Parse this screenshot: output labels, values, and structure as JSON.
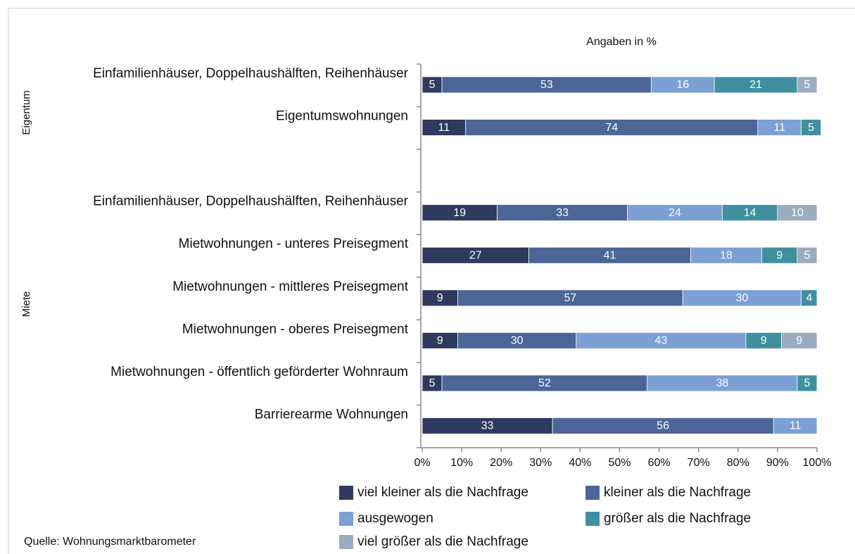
{
  "chart_data": {
    "type": "stacked_barh",
    "annotations": [
      "Angaben in %",
      "Quelle: Wohnungsmarktbarometer"
    ],
    "groups": [
      "Eigentum",
      "Miete"
    ],
    "categories": [
      "Einfamilienhäuser, Doppelhaushälften, Reihenhäuser",
      "Eigentumswohnungen",
      null,
      "Einfamilienhäuser, Doppelhaushälften, Reihenhäuser",
      "Mietwohnungen - unteres Preisegment",
      "Mietwohnungen - mittleres Preisegment",
      "Mietwohnungen - oberes Preisegment",
      "Mietwohnungen - öffentlich geförderter Wohnraum",
      "Barrierearme Wohnungen"
    ],
    "series": [
      {
        "name": "viel kleiner als die Nachfrage",
        "color": "#2e3a5e",
        "values": [
          5,
          11,
          null,
          19,
          27,
          9,
          9,
          5,
          33
        ]
      },
      {
        "name": "kleiner als die Nachfrage",
        "color": "#4b6697",
        "values": [
          53,
          74,
          null,
          33,
          41,
          57,
          30,
          52,
          56
        ]
      },
      {
        "name": "ausgewogen",
        "color": "#7c9fd5",
        "values": [
          16,
          11,
          null,
          24,
          18,
          30,
          43,
          38,
          11
        ]
      },
      {
        "name": "größer als die Nachfrage",
        "color": "#3f8f9f",
        "values": [
          21,
          5,
          null,
          14,
          9,
          4,
          9,
          5,
          null
        ]
      },
      {
        "name": "viel größer als die Nachfrage",
        "color": "#9aacbd",
        "values": [
          5,
          null,
          null,
          10,
          5,
          null,
          9,
          null,
          null
        ]
      }
    ],
    "xlim": [
      0,
      100
    ],
    "xticks": [
      {
        "value": 0,
        "label": "0%"
      },
      {
        "value": 10,
        "label": "10%"
      },
      {
        "value": 20,
        "label": "20%"
      },
      {
        "value": 30,
        "label": "30%"
      },
      {
        "value": 40,
        "label": "40%"
      },
      {
        "value": 50,
        "label": "50%"
      },
      {
        "value": 60,
        "label": "60%"
      },
      {
        "value": 70,
        "label": "70%"
      },
      {
        "value": 80,
        "label": "80%"
      },
      {
        "value": 90,
        "label": "90%"
      },
      {
        "value": 100,
        "label": "100%"
      }
    ]
  }
}
